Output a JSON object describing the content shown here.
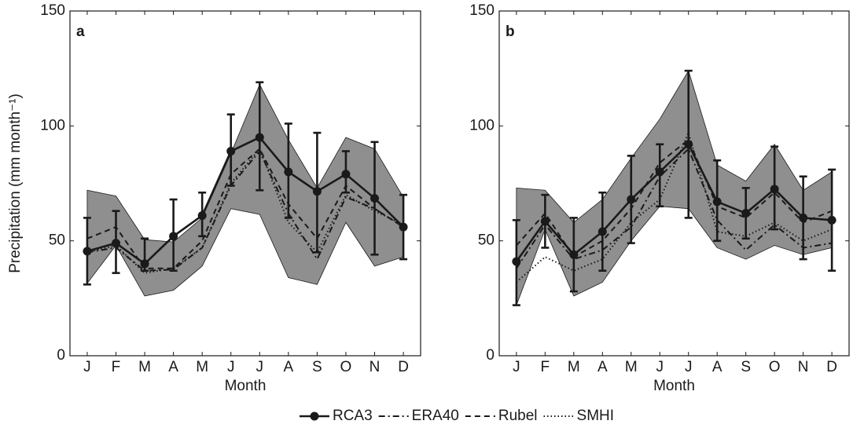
{
  "chart_data": [
    {
      "type": "line",
      "label": "a",
      "xlabel": "Month",
      "ylabel": "Precipitation (mm month⁻¹)",
      "categories": [
        "J",
        "F",
        "M",
        "A",
        "M",
        "J",
        "J",
        "A",
        "S",
        "O",
        "N",
        "D"
      ],
      "ylim": [
        0,
        150
      ],
      "yticks": [
        0,
        50,
        100,
        150
      ],
      "band": {
        "color": "#8f8f8f",
        "upper": [
          72,
          69.5,
          50.5,
          49.5,
          60,
          88,
          118,
          94,
          73,
          95,
          90,
          69
        ],
        "lower": [
          31.5,
          48,
          26,
          28.5,
          39,
          64,
          61.5,
          34,
          31,
          58,
          39,
          43
        ]
      },
      "series": [
        {
          "name": "RCA3",
          "color": "#1a1a1a",
          "style": "solid",
          "marker": "circle",
          "values": [
            45.5,
            49,
            40,
            52,
            61,
            89,
            95,
            80,
            71.5,
            79,
            68.5,
            56
          ],
          "lower": [
            31,
            36,
            37,
            37,
            52,
            74,
            72,
            60,
            45,
            71,
            44,
            42
          ],
          "upper": [
            60,
            63,
            51,
            68,
            71,
            105,
            119,
            101,
            97,
            89,
            93,
            70
          ]
        },
        {
          "name": "ERA40",
          "color": "#1a1a1a",
          "style": "dashdot",
          "values": [
            45,
            47,
            37,
            37.5,
            47,
            74,
            89,
            62,
            42,
            69,
            64,
            56
          ]
        },
        {
          "name": "Rubel",
          "color": "#1a1a1a",
          "style": "dashed",
          "values": [
            51,
            56,
            38,
            38,
            50,
            79,
            90,
            66,
            51,
            74,
            64,
            56
          ]
        },
        {
          "name": "SMHI",
          "color": "#1a1a1a",
          "style": "dotted",
          "values": [
            45,
            48,
            36,
            38,
            47,
            75,
            90,
            58,
            45,
            70,
            63,
            57
          ]
        }
      ]
    },
    {
      "type": "line",
      "label": "b",
      "xlabel": "Month",
      "categories": [
        "J",
        "F",
        "M",
        "A",
        "M",
        "J",
        "J",
        "A",
        "S",
        "O",
        "N",
        "D"
      ],
      "ylim": [
        0,
        150
      ],
      "yticks": [
        0,
        50,
        100,
        150
      ],
      "band": {
        "color": "#8f8f8f",
        "upper": [
          73,
          72,
          58,
          68,
          86,
          103,
          124,
          83,
          76,
          92,
          72,
          80
        ],
        "lower": [
          22,
          55,
          26,
          32,
          50,
          65,
          64,
          47,
          42,
          48,
          44,
          47
        ]
      },
      "series": [
        {
          "color": "#1a1a1a",
          "style": "solid",
          "marker": "circle",
          "values": [
            41,
            58.5,
            44,
            54,
            68,
            80,
            92,
            67,
            62,
            72.5,
            60,
            59
          ],
          "lower": [
            22,
            47,
            28,
            37,
            49,
            65,
            60,
            50,
            51,
            55,
            42,
            37
          ],
          "upper": [
            59,
            70,
            60,
            71,
            87,
            92,
            124,
            85,
            73,
            91,
            78,
            81
          ]
        },
        {
          "color": "#1a1a1a",
          "style": "dashdot",
          "values": [
            38,
            57,
            42,
            46,
            56,
            78,
            90,
            59,
            46,
            57,
            47,
            49
          ]
        },
        {
          "color": "#1a1a1a",
          "style": "dashed",
          "values": [
            48,
            62,
            43,
            50,
            64,
            84,
            94,
            65,
            60,
            71,
            58,
            63
          ]
        },
        {
          "color": "#1a1a1a",
          "style": "dotted",
          "values": [
            32,
            43,
            37,
            42,
            58,
            68,
            97,
            54,
            52,
            58,
            50,
            55
          ]
        }
      ]
    }
  ]
}
